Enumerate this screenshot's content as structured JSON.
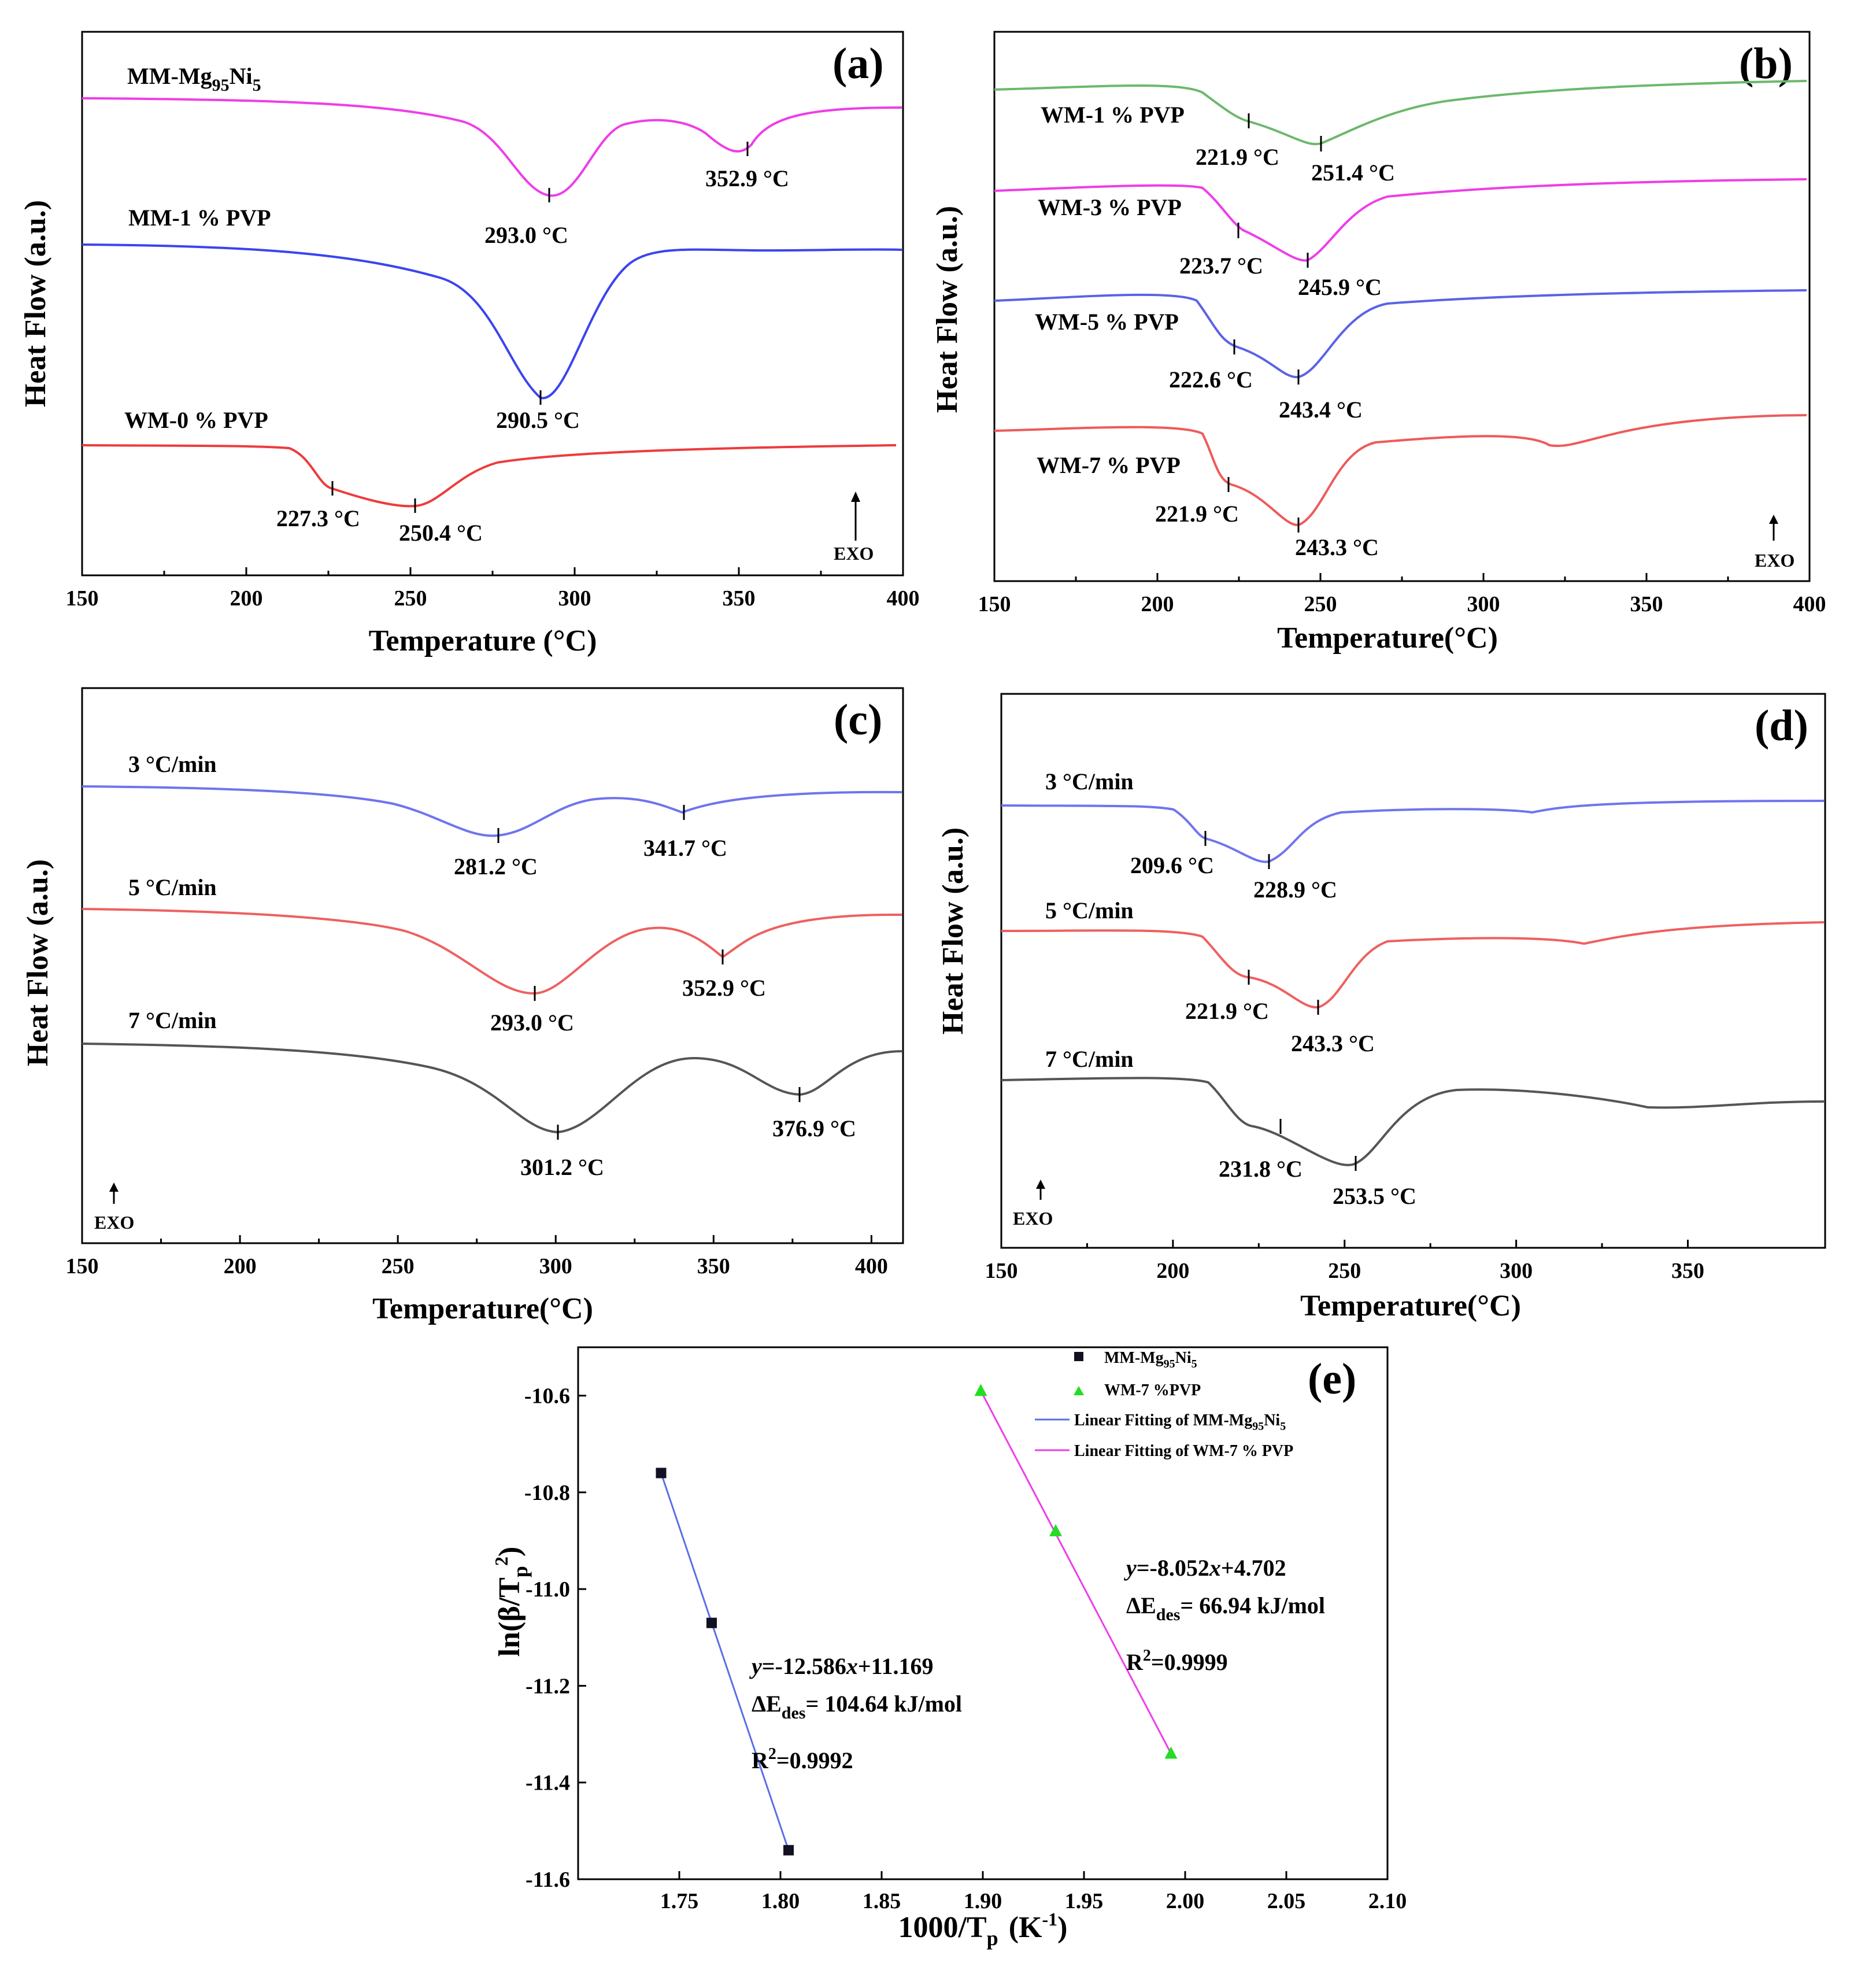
{
  "figure_labels": {
    "a": "(a)",
    "b": "(b)",
    "c": "(c)",
    "d": "(d)",
    "e": "(e)"
  },
  "chart_data": [
    {
      "id": "a",
      "type": "line",
      "panel_label": "(a)",
      "xlabel": "Temperature (°C)",
      "ylabel": "Heat Flow (a.u.)",
      "xlim": [
        150,
        400
      ],
      "xticks": [
        150,
        200,
        250,
        300,
        350,
        400
      ],
      "exo": "EXO",
      "series": [
        {
          "name": "MM-Mg95Ni5",
          "name_main": "MM-Mg",
          "name_sub1": "95",
          "name_mid": "Ni",
          "name_sub2": "5",
          "color": "#ee3de8",
          "peaks": [
            {
              "t": 293.0,
              "label": "293.0 °C"
            },
            {
              "t": 352.9,
              "label": "352.9 °C"
            }
          ]
        },
        {
          "name": "MM-1 % PVP",
          "color": "#3b44ee",
          "peaks": [
            {
              "t": 290.5,
              "label": "290.5 °C"
            }
          ]
        },
        {
          "name": "WM-0 % PVP",
          "color": "#ee3b3b",
          "peaks": [
            {
              "t": 227.3,
              "label": "227.3 °C"
            },
            {
              "t": 250.4,
              "label": "250.4 °C"
            }
          ]
        }
      ]
    },
    {
      "id": "b",
      "type": "line",
      "panel_label": "(b)",
      "xlabel": "Temperature(°C)",
      "ylabel": "Heat Flow (a.u.)",
      "xlim": [
        150,
        400
      ],
      "xticks": [
        150,
        200,
        250,
        300,
        350,
        400
      ],
      "exo": "EXO",
      "series": [
        {
          "name": "WM-1 % PVP",
          "color": "#6cb86c",
          "peaks": [
            {
              "t": 221.9,
              "label": "221.9 °C"
            },
            {
              "t": 251.4,
              "label": "251.4 °C"
            }
          ]
        },
        {
          "name": "WM-3 % PVP",
          "color": "#ee3de8",
          "peaks": [
            {
              "t": 223.7,
              "label": "223.7 °C"
            },
            {
              "t": 245.9,
              "label": "245.9 °C"
            }
          ]
        },
        {
          "name": "WM-5 % PVP",
          "color": "#5a63e6",
          "peaks": [
            {
              "t": 222.6,
              "label": "222.6 °C"
            },
            {
              "t": 243.4,
              "label": "243.4 °C"
            }
          ]
        },
        {
          "name": "WM-7 % PVP",
          "color": "#ee5a5a",
          "peaks": [
            {
              "t": 221.9,
              "label": "221.9 °C"
            },
            {
              "t": 243.3,
              "label": "243.3 °C"
            }
          ]
        }
      ]
    },
    {
      "id": "c",
      "type": "line",
      "panel_label": "(c)",
      "xlabel": "Temperature(°C)",
      "ylabel": "Heat Flow (a.u.)",
      "xlim": [
        150,
        410
      ],
      "xticks": [
        150,
        200,
        250,
        300,
        350,
        400
      ],
      "exo": "EXO",
      "series": [
        {
          "name": "3 °C/min",
          "color": "#6f74ee",
          "peaks": [
            {
              "t": 281.2,
              "label": "281.2 °C"
            },
            {
              "t": 341.7,
              "label": "341.7 °C"
            }
          ]
        },
        {
          "name": "5 °C/min",
          "color": "#ee6060",
          "peaks": [
            {
              "t": 293.0,
              "label": "293.0 °C"
            },
            {
              "t": 352.9,
              "label": "352.9 °C"
            }
          ]
        },
        {
          "name": "7 °C/min",
          "color": "#555555",
          "peaks": [
            {
              "t": 301.2,
              "label": "301.2 °C"
            },
            {
              "t": 376.9,
              "label": "376.9 °C"
            }
          ]
        }
      ]
    },
    {
      "id": "d",
      "type": "line",
      "panel_label": "(d)",
      "xlabel": "Temperature(°C)",
      "ylabel": "Heat Flow (a.u.)",
      "xlim": [
        150,
        390
      ],
      "xticks": [
        150,
        200,
        250,
        300,
        350
      ],
      "exo": "EXO",
      "series": [
        {
          "name": "3 °C/min",
          "color": "#6f74ee",
          "peaks": [
            {
              "t": 209.6,
              "label": "209.6 °C"
            },
            {
              "t": 228.9,
              "label": "228.9 °C"
            }
          ]
        },
        {
          "name": "5 °C/min",
          "color": "#ee6060",
          "peaks": [
            {
              "t": 221.9,
              "label": "221.9 °C"
            },
            {
              "t": 243.3,
              "label": "243.3 °C"
            }
          ]
        },
        {
          "name": "7 °C/min",
          "color": "#555555",
          "peaks": [
            {
              "t": 231.8,
              "label": "231.8 °C"
            },
            {
              "t": 253.5,
              "label": "253.5 °C"
            }
          ]
        }
      ]
    },
    {
      "id": "e",
      "type": "scatter",
      "panel_label": "(e)",
      "xlabel": "1000/T",
      "xlabel_sub": "p",
      "xlabel_unit": "(K",
      "xlabel_unit_sup": "-1",
      "xlabel_unit_end": ")",
      "ylabel": "ln(β/T",
      "ylabel_sub": "p",
      "ylabel_sup": "2",
      "ylabel_end": ")",
      "xlim": [
        1.7,
        2.1
      ],
      "ylim": [
        -11.6,
        -10.5
      ],
      "xticks": [
        1.75,
        1.8,
        1.85,
        1.9,
        1.95,
        2.0,
        2.05,
        2.1
      ],
      "yticks": [
        -11.6,
        -11.4,
        -11.2,
        -11.0,
        -10.8,
        -10.6
      ],
      "series": [
        {
          "name": "MM-Mg95Ni5",
          "legend_main": "MM-Mg",
          "legend_sub1": "95",
          "legend_mid": "Ni",
          "legend_sub2": "5",
          "marker": "square",
          "color": "#111122",
          "x": [
            1.741,
            1.766,
            1.804
          ],
          "y": [
            -10.76,
            -11.07,
            -11.54
          ],
          "fit_color": "#5a6fe6",
          "fit_legend_main": "Linear Fitting of MM-Mg",
          "fit_legend_sub1": "95",
          "fit_legend_mid": "Ni",
          "fit_legend_sub2": "5",
          "fit_slope": -12.586,
          "fit_intercept": 11.169,
          "equation_y": "y",
          "equation_rest1": "=-12.586",
          "equation_x": "x",
          "equation_rest2": "+11.169",
          "energy_pre": "ΔE",
          "energy_sub": "des",
          "energy_post": "= 104.64 kJ/mol",
          "r2_pre": "R",
          "r2_sup": "2",
          "r2_post": "=0.9992"
        },
        {
          "name": "WM-7 %PVP",
          "marker": "triangle",
          "color": "#22dd22",
          "x": [
            1.899,
            1.936,
            1.993
          ],
          "y": [
            -10.59,
            -10.88,
            -11.34
          ],
          "fit_color": "#ee3de8",
          "fit_legend": "Linear Fitting of WM-7 % PVP",
          "fit_slope": -8.052,
          "fit_intercept": 4.702,
          "equation_y": "y",
          "equation_rest1": "=-8.052",
          "equation_x": "x",
          "equation_rest2": "+4.702",
          "energy_pre": "ΔE",
          "energy_sub": "des",
          "energy_post": "= 66.94 kJ/mol",
          "r2_pre": "R",
          "r2_sup": "2",
          "r2_post": "=0.9999"
        }
      ]
    }
  ]
}
